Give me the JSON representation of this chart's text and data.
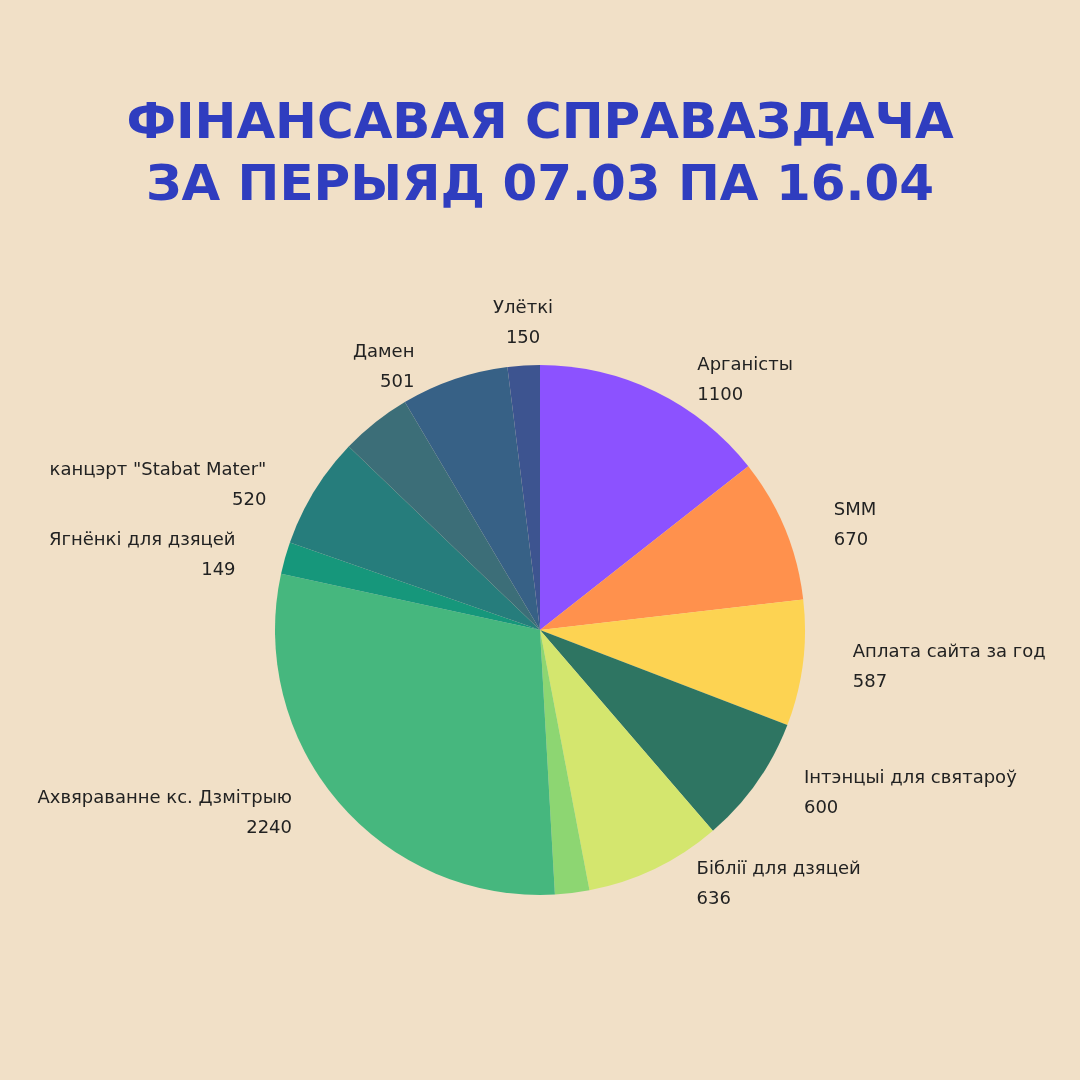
{
  "chart_data": {
    "type": "pie",
    "title": "ФІНАНСАВАЯ СПРАВАЗДАЧА\nЗА ПЕРЫЯД 07.03 ПА 16.04",
    "categories": [
      "Арганісты",
      "SMM",
      "Аплата сайта за год",
      "Інтэнцыі для святароў",
      "Біблії для дзяцей",
      null,
      "Ахвяраванне кс. Дзмітрыю",
      "Ягнёнкі для дзяцей",
      "канцэрт \"Stabat Mater\"",
      null,
      "Дамен",
      "Улёткі"
    ],
    "values": [
      1100,
      670,
      587,
      600,
      636,
      160,
      2240,
      149,
      520,
      330,
      501,
      150
    ],
    "value_labels": [
      "1100",
      "670",
      "587",
      "600",
      "636",
      null,
      "2240",
      "149",
      "520",
      null,
      "501",
      "150"
    ],
    "colors": [
      "#8c52ff",
      "#ff914d",
      "#fdd352",
      "#2e7562",
      "#d4e66e",
      "#8dd672",
      "#46b77e",
      "#16977b",
      "#267d7c",
      "#3c6e78",
      "#376186",
      "#3d5490"
    ]
  }
}
